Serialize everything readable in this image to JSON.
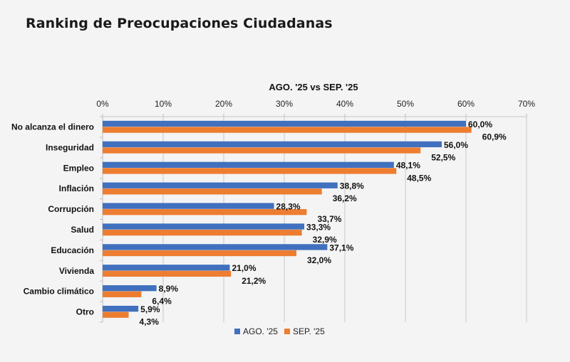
{
  "page": {
    "title": "Ranking de Preocupaciones Ciudadanas"
  },
  "chart_data": {
    "type": "bar",
    "orientation": "horizontal",
    "title": "AGO. '25 vs SEP. '25",
    "xlabel": "",
    "ylabel": "",
    "xlim": [
      0,
      70
    ],
    "x_ticks": [
      "0%",
      "10%",
      "20%",
      "30%",
      "40%",
      "50%",
      "60%",
      "70%"
    ],
    "x_tick_values": [
      0,
      10,
      20,
      30,
      40,
      50,
      60,
      70
    ],
    "axis_position": "top",
    "grid": true,
    "legend": "bottom",
    "categories": [
      "No alcanza el dinero",
      "Inseguridad",
      "Empleo",
      "Inflación",
      "Corrupción",
      "Salud",
      "Educación",
      "Vivienda",
      "Cambio climático",
      "Otro"
    ],
    "series": [
      {
        "name": "AGO. '25",
        "color": "#4070BE",
        "values": [
          60.0,
          56.0,
          48.1,
          38.8,
          28.3,
          33.3,
          37.1,
          21.0,
          8.9,
          5.9
        ],
        "labels": [
          "60,0%",
          "56,0%",
          "48,1%",
          "38,8%",
          "28,3%",
          "33,3%",
          "37,1%",
          "21,0%",
          "8,9%",
          "5,9%"
        ]
      },
      {
        "name": "SEP. '25",
        "color": "#ED7D31",
        "values": [
          60.9,
          52.5,
          48.5,
          36.2,
          33.7,
          32.9,
          32.0,
          21.2,
          6.4,
          4.3
        ],
        "labels": [
          "60,9%",
          "52,5%",
          "48,5%",
          "36,2%",
          "33,7%",
          "32,9%",
          "32,0%",
          "21,2%",
          "6,4%",
          "4,3%"
        ]
      }
    ],
    "gridline_color": "#c8c8c8"
  }
}
